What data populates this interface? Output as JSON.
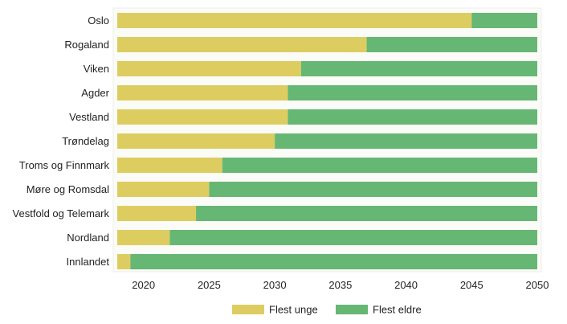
{
  "chart_data": {
    "type": "bar",
    "orientation": "horizontal",
    "stacked": true,
    "categories": [
      "Oslo",
      "Rogaland",
      "Viken",
      "Agder",
      "Vestland",
      "Trøndelag",
      "Troms og Finnmark",
      "Møre og Romsdal",
      "Vestfold og Telemark",
      "Nordland",
      "Innlandet"
    ],
    "x_start": 2018,
    "xlim": [
      2018,
      2050
    ],
    "xticks": [
      2020,
      2025,
      2030,
      2035,
      2040,
      2045,
      2050
    ],
    "switch_year": [
      2045,
      2037,
      2032,
      2031,
      2031,
      2030,
      2026,
      2025,
      2024,
      2022,
      2019
    ],
    "series": [
      {
        "name": "Flest unge",
        "color": "#ddcd60"
      },
      {
        "name": "Flest eldre",
        "color": "#66b774"
      }
    ],
    "title": "",
    "xlabel": "",
    "ylabel": "",
    "grid": false,
    "legend_position": "bottom"
  }
}
